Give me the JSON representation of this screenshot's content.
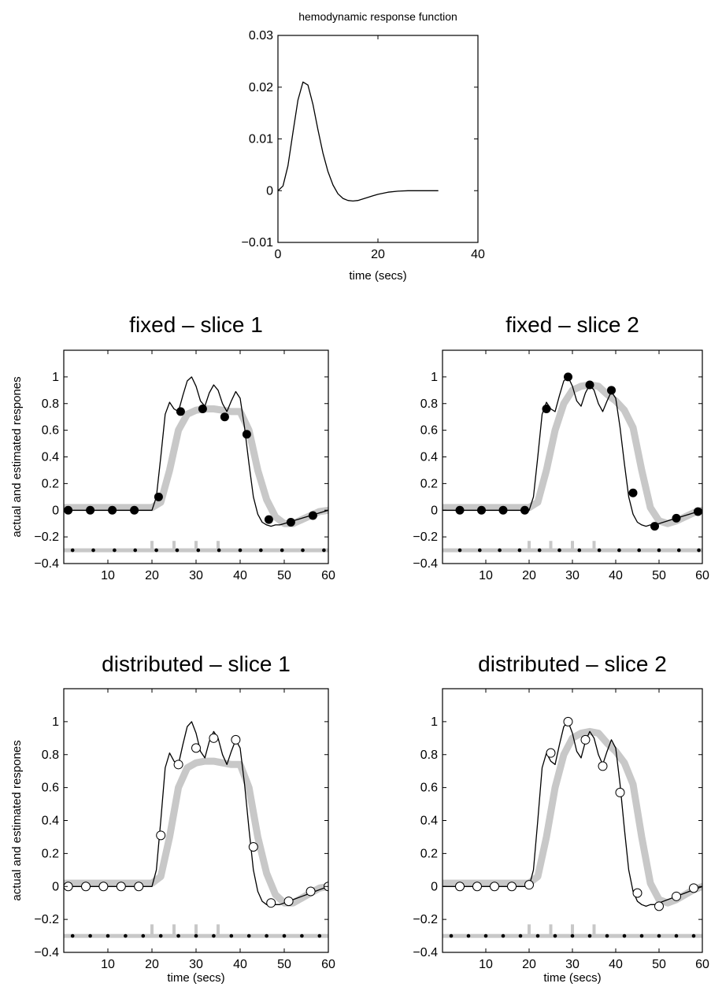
{
  "chart_data": [
    {
      "type": "line",
      "title": "hemodynamic response function",
      "xlabel": "time (secs)",
      "ylabel": "",
      "xlim": [
        0,
        40
      ],
      "ylim": [
        -0.01,
        0.03
      ],
      "xticks": [
        "0",
        "20",
        "40"
      ],
      "yticks": [
        "−0.01",
        "0",
        "0.01",
        "0.02",
        "0.03"
      ],
      "grid": false,
      "series": [
        {
          "x": [
            0,
            1,
            2,
            3,
            4,
            5,
            6,
            7,
            8,
            9,
            10,
            11,
            12,
            13,
            14,
            15,
            16,
            17,
            18,
            19,
            20,
            22,
            24,
            26,
            28,
            30,
            32
          ],
          "values": [
            0,
            0.0009,
            0.0048,
            0.0113,
            0.0175,
            0.021,
            0.0204,
            0.0167,
            0.0118,
            0.0073,
            0.0037,
            0.0011,
            -0.0006,
            -0.0015,
            -0.0019,
            -0.002,
            -0.0019,
            -0.0016,
            -0.0013,
            -0.001,
            -0.0007,
            -0.0003,
            -0.0001,
            0,
            0,
            0,
            0
          ]
        }
      ]
    },
    {
      "type": "line",
      "title": "fixed – slice 1",
      "xlabel": "",
      "ylabel": "actual and estimated respones",
      "xlim": [
        0,
        60
      ],
      "ylim": [
        -0.4,
        1.2
      ],
      "xticks": [
        "10",
        "20",
        "30",
        "40",
        "50",
        "60"
      ],
      "yticks": [
        "−0.4",
        "−0.2",
        "0",
        "0.2",
        "0.4",
        "0.6",
        "0.8",
        "1"
      ],
      "grid": false,
      "series": [
        {
          "style": "gray-thick",
          "x": [
            0,
            20,
            22,
            24,
            26,
            28,
            30,
            32,
            34,
            36,
            38,
            40,
            42,
            44,
            46,
            48,
            50,
            52,
            54,
            56,
            58,
            60
          ],
          "values": [
            0.02,
            0.02,
            0.06,
            0.3,
            0.6,
            0.72,
            0.75,
            0.76,
            0.76,
            0.75,
            0.74,
            0.74,
            0.6,
            0.3,
            0.08,
            -0.05,
            -0.1,
            -0.1,
            -0.07,
            -0.04,
            -0.01,
            0
          ]
        },
        {
          "style": "black-thin",
          "x": [
            0,
            20,
            21,
            22,
            23,
            24,
            25,
            26,
            27,
            28,
            29,
            30,
            31,
            32,
            33,
            34,
            35,
            36,
            37,
            38,
            39,
            40,
            41,
            42,
            43,
            44,
            45,
            46,
            47,
            48,
            49,
            50,
            52,
            54,
            56,
            58,
            60
          ],
          "values": [
            0,
            0,
            0.1,
            0.4,
            0.72,
            0.81,
            0.76,
            0.74,
            0.86,
            0.97,
            1.0,
            0.93,
            0.82,
            0.78,
            0.88,
            0.94,
            0.9,
            0.8,
            0.74,
            0.82,
            0.89,
            0.84,
            0.62,
            0.35,
            0.1,
            -0.03,
            -0.09,
            -0.11,
            -0.12,
            -0.11,
            -0.11,
            -0.1,
            -0.08,
            -0.06,
            -0.04,
            -0.02,
            0
          ]
        },
        {
          "style": "filled-markers",
          "x": [
            1,
            6,
            11,
            16,
            21.5,
            26.5,
            31.5,
            36.5,
            41.5,
            46.5,
            51.5,
            56.5
          ],
          "values": [
            0,
            0,
            0,
            0,
            0.1,
            0.74,
            0.76,
            0.7,
            0.57,
            -0.07,
            -0.09,
            -0.04
          ]
        },
        {
          "style": "events",
          "x": [
            20,
            25,
            30,
            35
          ],
          "values": [
            -0.23,
            -0.23,
            -0.23,
            -0.23
          ]
        },
        {
          "style": "baseline-dots",
          "x": [
            2,
            6.7,
            11.5,
            16.2,
            21,
            25.7,
            30.5,
            35.2,
            40,
            44.7,
            49.5,
            54.2,
            59
          ],
          "values": [
            -0.3,
            -0.3,
            -0.3,
            -0.3,
            -0.3,
            -0.3,
            -0.3,
            -0.3,
            -0.3,
            -0.3,
            -0.3,
            -0.3,
            -0.3
          ]
        }
      ]
    },
    {
      "type": "line",
      "title": "fixed – slice 2",
      "xlabel": "",
      "ylabel": "",
      "xlim": [
        0,
        60
      ],
      "ylim": [
        -0.4,
        1.2
      ],
      "xticks": [
        "10",
        "20",
        "30",
        "40",
        "50",
        "60"
      ],
      "yticks": [
        "−0.4",
        "−0.2",
        "0",
        "0.2",
        "0.4",
        "0.6",
        "0.8",
        "1"
      ],
      "grid": false,
      "series": [
        {
          "style": "gray-thick",
          "x": [
            0,
            20,
            22,
            24,
            26,
            28,
            30,
            32,
            34,
            36,
            38,
            40,
            42,
            44,
            46,
            48,
            50,
            52,
            54,
            56,
            58,
            60
          ],
          "values": [
            0.02,
            0.02,
            0.06,
            0.3,
            0.6,
            0.8,
            0.9,
            0.93,
            0.94,
            0.93,
            0.87,
            0.82,
            0.75,
            0.62,
            0.3,
            0.02,
            -0.08,
            -0.1,
            -0.08,
            -0.05,
            -0.02,
            0
          ]
        },
        {
          "style": "black-thin",
          "x": [
            0,
            20,
            21,
            22,
            23,
            24,
            25,
            26,
            27,
            28,
            29,
            30,
            31,
            32,
            33,
            34,
            35,
            36,
            37,
            38,
            39,
            40,
            41,
            42,
            43,
            44,
            45,
            46,
            47,
            48,
            49,
            50,
            52,
            54,
            56,
            58,
            60
          ],
          "values": [
            0,
            0,
            0.1,
            0.4,
            0.72,
            0.81,
            0.76,
            0.74,
            0.86,
            0.97,
            1.0,
            0.93,
            0.82,
            0.78,
            0.88,
            0.94,
            0.9,
            0.8,
            0.74,
            0.82,
            0.89,
            0.84,
            0.62,
            0.35,
            0.1,
            -0.03,
            -0.09,
            -0.11,
            -0.12,
            -0.11,
            -0.11,
            -0.1,
            -0.08,
            -0.06,
            -0.04,
            -0.02,
            0
          ]
        },
        {
          "style": "filled-markers",
          "x": [
            4,
            9,
            14,
            19,
            24,
            29,
            34,
            39,
            44,
            49,
            54,
            59
          ],
          "values": [
            0,
            0,
            0,
            0,
            0.76,
            1.0,
            0.94,
            0.9,
            0.13,
            -0.12,
            -0.06,
            -0.01
          ]
        },
        {
          "style": "events",
          "x": [
            20,
            25,
            30,
            35
          ],
          "values": [
            -0.23,
            -0.23,
            -0.23,
            -0.23
          ]
        },
        {
          "style": "baseline-dots",
          "x": [
            4,
            8.6,
            13.2,
            17.8,
            22.4,
            27,
            31.6,
            36.2,
            40.8,
            45.4,
            50,
            54.6,
            59.2
          ],
          "values": [
            -0.3,
            -0.3,
            -0.3,
            -0.3,
            -0.3,
            -0.3,
            -0.3,
            -0.3,
            -0.3,
            -0.3,
            -0.3,
            -0.3,
            -0.3
          ]
        }
      ]
    },
    {
      "type": "line",
      "title": "distributed – slice 1",
      "xlabel": "time (secs)",
      "ylabel": "actual and estimated respones",
      "xlim": [
        0,
        60
      ],
      "ylim": [
        -0.4,
        1.2
      ],
      "xticks": [
        "10",
        "20",
        "30",
        "40",
        "50",
        "60"
      ],
      "yticks": [
        "−0.4",
        "−0.2",
        "0",
        "0.2",
        "0.4",
        "0.6",
        "0.8",
        "1"
      ],
      "grid": false,
      "series": [
        {
          "style": "gray-thick",
          "x": [
            0,
            20,
            22,
            24,
            26,
            28,
            30,
            32,
            34,
            36,
            38,
            40,
            42,
            44,
            46,
            48,
            50,
            52,
            54,
            56,
            58,
            60
          ],
          "values": [
            0.02,
            0.02,
            0.06,
            0.3,
            0.6,
            0.72,
            0.75,
            0.76,
            0.76,
            0.75,
            0.74,
            0.74,
            0.6,
            0.3,
            0.08,
            -0.05,
            -0.1,
            -0.1,
            -0.07,
            -0.04,
            -0.01,
            0
          ]
        },
        {
          "style": "black-thin",
          "x": [
            0,
            20,
            21,
            22,
            23,
            24,
            25,
            26,
            27,
            28,
            29,
            30,
            31,
            32,
            33,
            34,
            35,
            36,
            37,
            38,
            39,
            40,
            41,
            42,
            43,
            44,
            45,
            46,
            47,
            48,
            49,
            50,
            52,
            54,
            56,
            58,
            60
          ],
          "values": [
            0,
            0,
            0.1,
            0.4,
            0.72,
            0.81,
            0.76,
            0.74,
            0.86,
            0.97,
            1.0,
            0.93,
            0.82,
            0.78,
            0.88,
            0.94,
            0.9,
            0.8,
            0.74,
            0.82,
            0.89,
            0.84,
            0.62,
            0.35,
            0.1,
            -0.03,
            -0.09,
            -0.11,
            -0.12,
            -0.11,
            -0.11,
            -0.1,
            -0.08,
            -0.06,
            -0.04,
            -0.02,
            0
          ]
        },
        {
          "style": "open-markers",
          "x": [
            1,
            5,
            9,
            13,
            17,
            22,
            26,
            30,
            34,
            39,
            43,
            47,
            51,
            56,
            60
          ],
          "values": [
            0,
            0,
            0,
            0,
            0,
            0.31,
            0.74,
            0.84,
            0.9,
            0.89,
            0.24,
            -0.1,
            -0.09,
            -0.03,
            0
          ]
        },
        {
          "style": "events",
          "x": [
            20,
            25,
            30,
            35
          ],
          "values": [
            -0.23,
            -0.23,
            -0.23,
            -0.23
          ]
        },
        {
          "style": "baseline-dots",
          "x": [
            2,
            6,
            10,
            14,
            18,
            22,
            26,
            30,
            34,
            38,
            42,
            46,
            50,
            54,
            58
          ],
          "values": [
            -0.3,
            -0.3,
            -0.3,
            -0.3,
            -0.3,
            -0.3,
            -0.3,
            -0.3,
            -0.3,
            -0.3,
            -0.3,
            -0.3,
            -0.3,
            -0.3,
            -0.3
          ]
        }
      ]
    },
    {
      "type": "line",
      "title": "distributed – slice 2",
      "xlabel": "time (secs)",
      "ylabel": "",
      "xlim": [
        0,
        60
      ],
      "ylim": [
        -0.4,
        1.2
      ],
      "xticks": [
        "10",
        "20",
        "30",
        "40",
        "50",
        "60"
      ],
      "yticks": [
        "−0.4",
        "−0.2",
        "0",
        "0.2",
        "0.4",
        "0.6",
        "0.8",
        "1"
      ],
      "grid": false,
      "series": [
        {
          "style": "gray-thick",
          "x": [
            0,
            20,
            22,
            24,
            26,
            28,
            30,
            32,
            34,
            36,
            38,
            40,
            42,
            44,
            46,
            48,
            50,
            52,
            54,
            56,
            58,
            60
          ],
          "values": [
            0.02,
            0.02,
            0.06,
            0.3,
            0.6,
            0.8,
            0.9,
            0.93,
            0.94,
            0.93,
            0.87,
            0.82,
            0.75,
            0.62,
            0.3,
            0.02,
            -0.08,
            -0.1,
            -0.08,
            -0.05,
            -0.02,
            0
          ]
        },
        {
          "style": "black-thin",
          "x": [
            0,
            20,
            21,
            22,
            23,
            24,
            25,
            26,
            27,
            28,
            29,
            30,
            31,
            32,
            33,
            34,
            35,
            36,
            37,
            38,
            39,
            40,
            41,
            42,
            43,
            44,
            45,
            46,
            47,
            48,
            49,
            50,
            52,
            54,
            56,
            58,
            60
          ],
          "values": [
            0,
            0,
            0.1,
            0.4,
            0.72,
            0.81,
            0.76,
            0.74,
            0.86,
            0.97,
            1.0,
            0.93,
            0.82,
            0.78,
            0.88,
            0.94,
            0.9,
            0.8,
            0.74,
            0.82,
            0.89,
            0.84,
            0.62,
            0.35,
            0.1,
            -0.03,
            -0.09,
            -0.11,
            -0.12,
            -0.11,
            -0.11,
            -0.1,
            -0.08,
            -0.06,
            -0.04,
            -0.02,
            0
          ]
        },
        {
          "style": "open-markers",
          "x": [
            4,
            8,
            12,
            16,
            20,
            25,
            29,
            33,
            37,
            41,
            45,
            50,
            54,
            58
          ],
          "values": [
            0,
            0,
            0,
            0,
            0.01,
            0.81,
            1.0,
            0.89,
            0.73,
            0.57,
            -0.04,
            -0.12,
            -0.06,
            -0.01
          ]
        },
        {
          "style": "events",
          "x": [
            20,
            25,
            30,
            35
          ],
          "values": [
            -0.23,
            -0.23,
            -0.23,
            -0.23
          ]
        },
        {
          "style": "baseline-dots",
          "x": [
            2,
            6,
            10,
            14,
            18,
            22,
            26,
            30,
            34,
            38,
            42,
            46,
            50,
            54,
            58
          ],
          "values": [
            -0.3,
            -0.3,
            -0.3,
            -0.3,
            -0.3,
            -0.3,
            -0.3,
            -0.3,
            -0.3,
            -0.3,
            -0.3,
            -0.3,
            -0.3,
            -0.3,
            -0.3
          ]
        }
      ]
    }
  ]
}
